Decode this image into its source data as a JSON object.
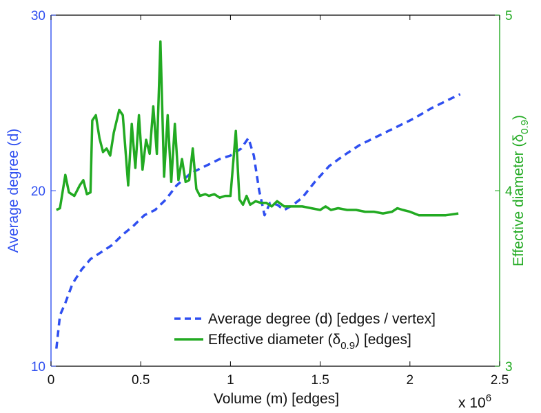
{
  "colors": {
    "left_axis": "#2f4ff0",
    "right_axis": "#22aa22",
    "series_degree": "#2f4ff0",
    "series_diameter": "#22aa22",
    "frame": "#000000"
  },
  "chart_data": {
    "type": "line",
    "title": "",
    "xlabel": "Volume (m) [edges]",
    "x_scale_label": "x 10",
    "x_scale_exponent": "6",
    "xlim": [
      0,
      2.5
    ],
    "xticks": [
      0,
      0.5,
      1,
      1.5,
      2,
      2.5
    ],
    "xtick_labels": [
      "0",
      "0.5",
      "1",
      "1.5",
      "2",
      "2.5"
    ],
    "y_left": {
      "label": "Average degree (d)",
      "lim": [
        10,
        30
      ],
      "ticks": [
        10,
        20,
        30
      ],
      "tick_labels": [
        "10",
        "20",
        "30"
      ]
    },
    "y_right": {
      "label": "Effective diameter (δ",
      "label_sub": "0.9",
      "label_close": ")",
      "lim": [
        3,
        5
      ],
      "ticks": [
        3,
        4,
        5
      ],
      "tick_labels": [
        "3",
        "4",
        "5"
      ]
    },
    "grid": false,
    "legend_position": "lower-right",
    "series": [
      {
        "name": "Average degree (d) [edges / vertex]",
        "legend_label": "Average degree (d) [edges / vertex]",
        "axis": "left",
        "style": "dashed",
        "x": [
          0.03,
          0.05,
          0.08,
          0.12,
          0.17,
          0.22,
          0.28,
          0.34,
          0.4,
          0.46,
          0.52,
          0.58,
          0.64,
          0.7,
          0.78,
          0.86,
          0.94,
          1.0,
          1.06,
          1.1,
          1.13,
          1.16,
          1.19,
          1.22,
          1.26,
          1.3,
          1.35,
          1.4,
          1.47,
          1.55,
          1.63,
          1.72,
          1.82,
          1.92,
          2.02,
          2.12,
          2.2,
          2.28
        ],
        "values": [
          11.0,
          12.9,
          13.6,
          14.7,
          15.5,
          16.1,
          16.5,
          16.9,
          17.5,
          18.0,
          18.6,
          18.9,
          19.5,
          20.3,
          21.0,
          21.4,
          21.8,
          22.0,
          22.4,
          23.0,
          22.0,
          20.0,
          18.6,
          19.3,
          19.2,
          18.9,
          19.2,
          19.6,
          20.5,
          21.4,
          22.0,
          22.6,
          23.1,
          23.6,
          24.1,
          24.7,
          25.1,
          25.5
        ]
      },
      {
        "name": "Effective diameter (δ0.9) [edges]",
        "legend_label": "Effective diameter (δ",
        "legend_sub": "0.9",
        "legend_close": ") [edges]",
        "axis": "right",
        "style": "solid",
        "x": [
          0.03,
          0.05,
          0.08,
          0.1,
          0.13,
          0.16,
          0.18,
          0.2,
          0.22,
          0.23,
          0.25,
          0.27,
          0.29,
          0.31,
          0.33,
          0.35,
          0.38,
          0.4,
          0.43,
          0.45,
          0.47,
          0.49,
          0.51,
          0.53,
          0.55,
          0.57,
          0.59,
          0.61,
          0.63,
          0.65,
          0.67,
          0.69,
          0.71,
          0.73,
          0.75,
          0.77,
          0.79,
          0.81,
          0.83,
          0.86,
          0.88,
          0.91,
          0.94,
          0.97,
          1.0,
          1.03,
          1.05,
          1.07,
          1.09,
          1.11,
          1.14,
          1.17,
          1.2,
          1.23,
          1.26,
          1.3,
          1.35,
          1.4,
          1.45,
          1.5,
          1.53,
          1.56,
          1.6,
          1.65,
          1.7,
          1.75,
          1.8,
          1.85,
          1.9,
          1.93,
          1.96,
          2.0,
          2.05,
          2.1,
          2.15,
          2.2,
          2.27
        ],
        "values": [
          3.89,
          3.9,
          4.09,
          3.99,
          3.97,
          4.03,
          4.06,
          3.98,
          3.99,
          4.4,
          4.43,
          4.3,
          4.22,
          4.24,
          4.2,
          4.33,
          4.46,
          4.43,
          4.03,
          4.38,
          4.13,
          4.43,
          4.12,
          4.29,
          4.21,
          4.48,
          4.21,
          4.85,
          4.08,
          4.43,
          4.05,
          4.38,
          4.06,
          4.18,
          4.05,
          4.06,
          4.24,
          4.01,
          3.97,
          3.98,
          3.97,
          3.98,
          3.96,
          3.97,
          3.97,
          4.34,
          3.95,
          3.92,
          3.97,
          3.92,
          3.94,
          3.93,
          3.93,
          3.91,
          3.94,
          3.91,
          3.91,
          3.91,
          3.9,
          3.89,
          3.91,
          3.89,
          3.9,
          3.89,
          3.89,
          3.88,
          3.88,
          3.87,
          3.88,
          3.9,
          3.89,
          3.88,
          3.86,
          3.86,
          3.86,
          3.86,
          3.87
        ]
      }
    ]
  }
}
